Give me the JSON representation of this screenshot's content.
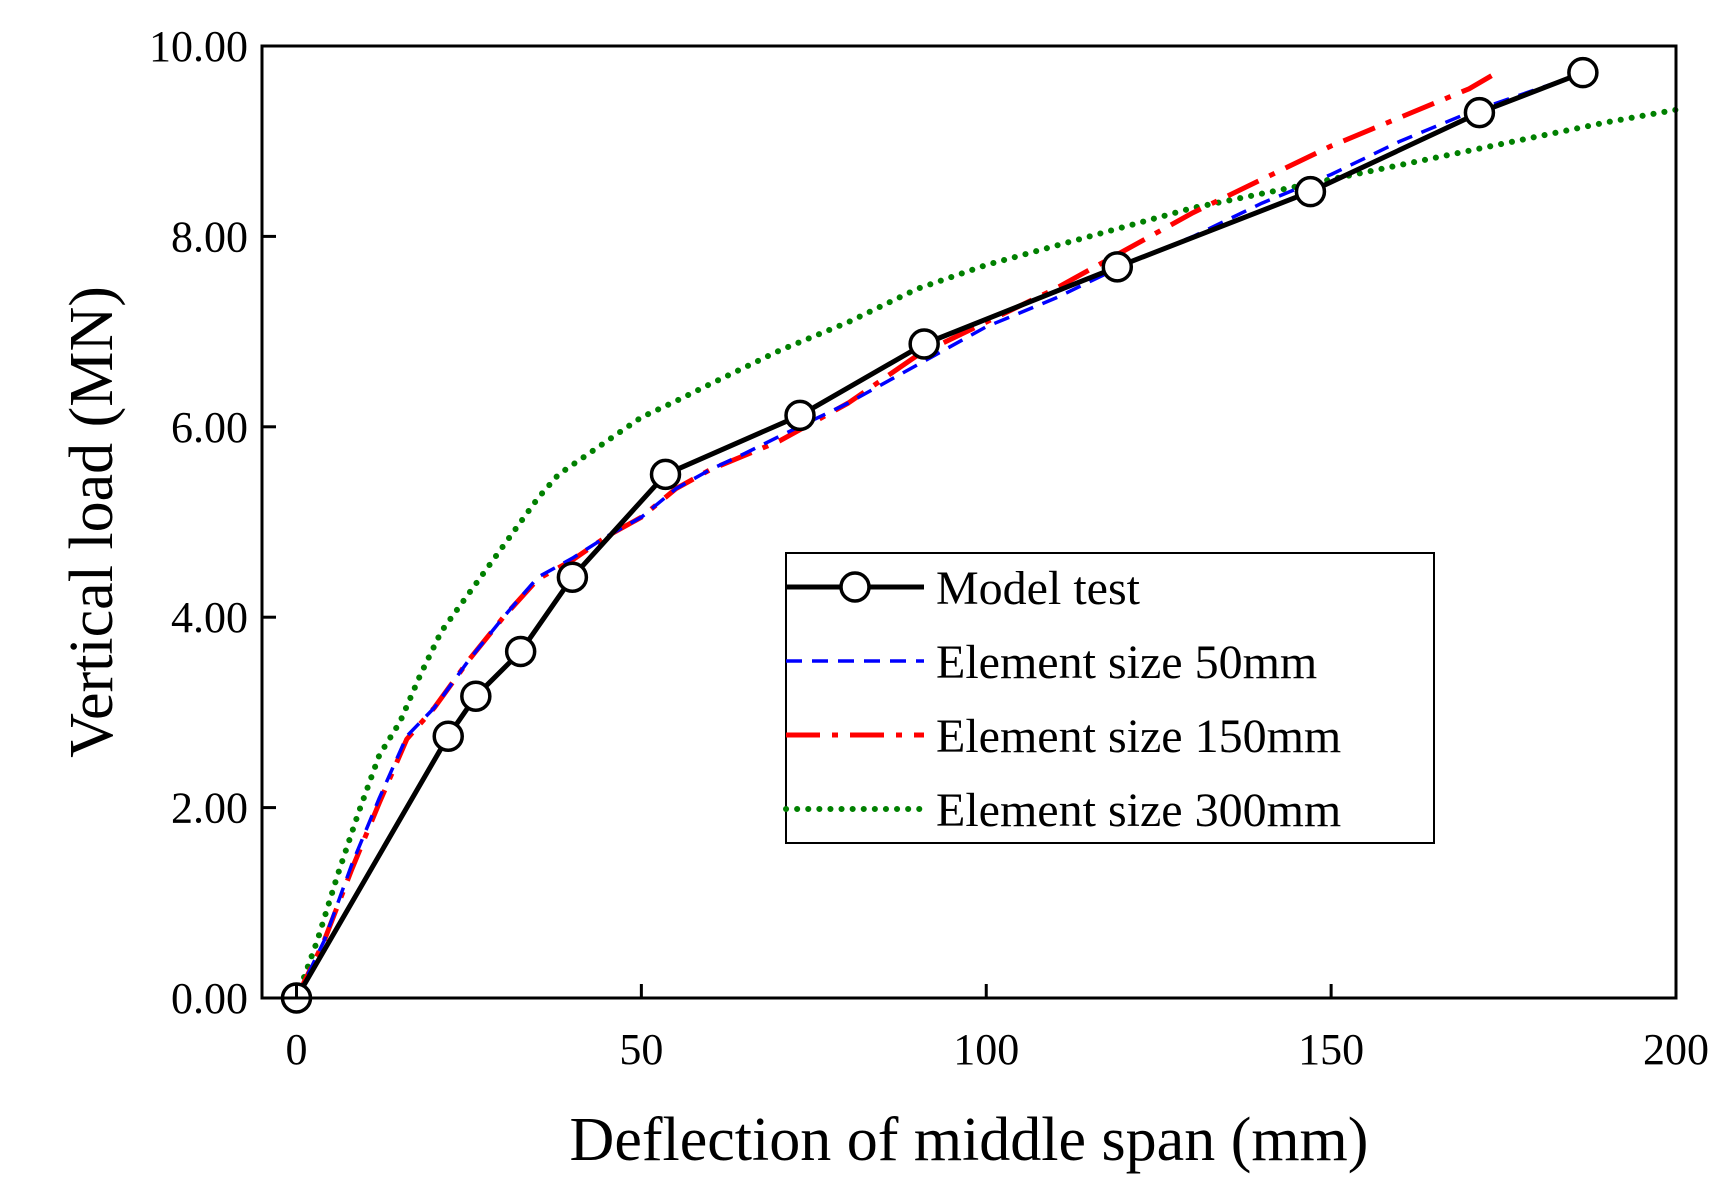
{
  "chart_data": {
    "type": "line",
    "xlabel": "Deflection of middle span (mm)",
    "ylabel": "Vertical load (MN)",
    "xlim": [
      -5,
      200
    ],
    "ylim": [
      0,
      10
    ],
    "xticks": [
      0,
      50,
      100,
      150,
      200
    ],
    "xtick_labels": [
      "0",
      "50",
      "100",
      "150",
      "200"
    ],
    "yticks": [
      0,
      2,
      4,
      6,
      8,
      10
    ],
    "ytick_labels": [
      "0.00",
      "2.00",
      "4.00",
      "6.00",
      "8.00",
      "10.00"
    ],
    "grid": false,
    "legend_position": "center-right",
    "series": [
      {
        "name": "Model test",
        "color": "#000000",
        "style": "solid-circle-markers",
        "x": [
          0,
          22,
          26,
          32.5,
          40,
          53.5,
          73,
          91,
          119,
          147,
          171.5,
          186.5
        ],
        "y": [
          0,
          2.75,
          3.17,
          3.64,
          4.42,
          5.5,
          6.12,
          6.87,
          7.68,
          8.47,
          9.3,
          9.72
        ]
      },
      {
        "name": "Element size 50mm",
        "color": "#0000ff",
        "style": "dashed",
        "x": [
          0,
          4,
          8,
          12,
          16,
          20,
          25,
          30,
          35,
          40,
          45,
          50,
          55,
          60,
          65,
          70,
          80,
          90,
          100,
          110,
          120,
          130,
          140,
          150,
          160,
          170,
          180,
          186
        ],
        "y": [
          0,
          0.6,
          1.4,
          2.1,
          2.75,
          3.05,
          3.55,
          4.0,
          4.42,
          4.62,
          4.85,
          5.05,
          5.35,
          5.55,
          5.72,
          5.9,
          6.25,
          6.65,
          7.05,
          7.35,
          7.7,
          8.0,
          8.35,
          8.65,
          9.0,
          9.3,
          9.55,
          9.7
        ]
      },
      {
        "name": "Element size 150mm",
        "color": "#ff0000",
        "style": "dash-dot",
        "x": [
          0,
          4,
          8,
          12,
          16,
          20,
          25,
          30,
          35,
          40,
          45,
          50,
          55,
          60,
          70,
          80,
          90,
          100,
          110,
          120,
          130,
          140,
          150,
          160,
          170,
          174
        ],
        "y": [
          0,
          0.6,
          1.35,
          2.05,
          2.72,
          3.05,
          3.55,
          4.0,
          4.4,
          4.6,
          4.85,
          5.05,
          5.35,
          5.55,
          5.85,
          6.25,
          6.75,
          7.1,
          7.45,
          7.85,
          8.25,
          8.6,
          8.95,
          9.25,
          9.55,
          9.72
        ]
      },
      {
        "name": "Element size 300mm",
        "color": "#008000",
        "style": "dotted",
        "x": [
          0,
          3,
          6,
          9,
          12,
          15,
          18,
          21,
          25,
          30,
          35,
          38,
          42,
          46,
          50,
          55,
          60,
          70,
          80,
          90,
          100,
          110,
          120,
          130,
          140,
          150,
          160,
          170,
          180,
          190,
          200
        ],
        "y": [
          0,
          0.6,
          1.3,
          1.95,
          2.55,
          2.9,
          3.4,
          3.85,
          4.25,
          4.75,
          5.25,
          5.5,
          5.7,
          5.9,
          6.1,
          6.27,
          6.45,
          6.8,
          7.1,
          7.45,
          7.7,
          7.9,
          8.1,
          8.3,
          8.45,
          8.6,
          8.75,
          8.9,
          9.05,
          9.2,
          9.33
        ]
      }
    ]
  }
}
